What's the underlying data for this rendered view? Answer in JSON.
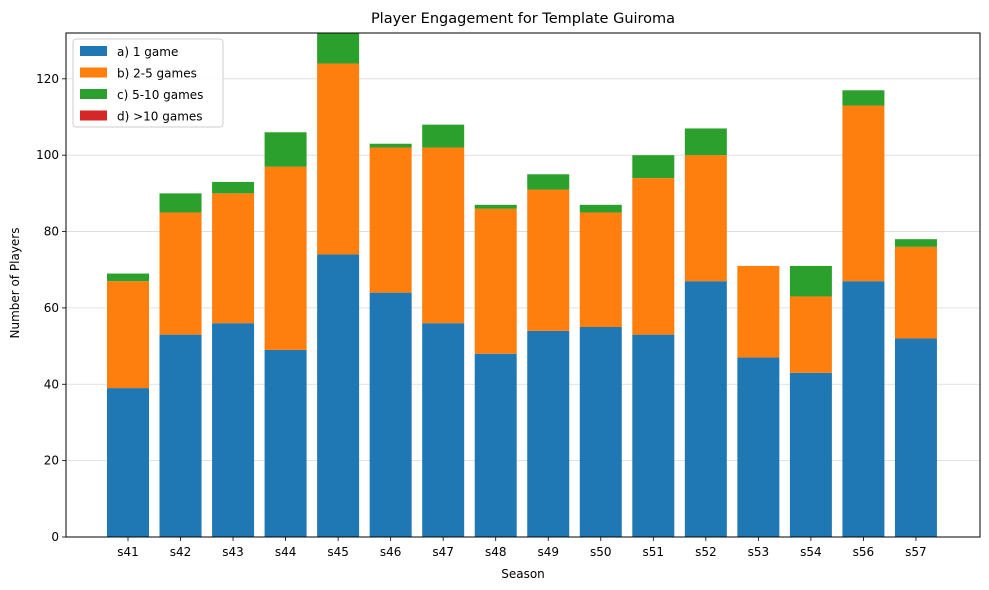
{
  "chart_data": {
    "type": "bar",
    "stacked": true,
    "title": "Player Engagement for Template Guiroma",
    "xlabel": "Season",
    "ylabel": "Number of Players",
    "ylim": [
      0,
      132
    ],
    "yticks": [
      0,
      20,
      40,
      60,
      80,
      100,
      120
    ],
    "grid": "horizontal",
    "legend_position": "top-left",
    "categories": [
      "s41",
      "s42",
      "s43",
      "s44",
      "s45",
      "s46",
      "s47",
      "s48",
      "s49",
      "s50",
      "s51",
      "s52",
      "s53",
      "s54",
      "s56",
      "s57"
    ],
    "series": [
      {
        "name": "a) 1 game",
        "color": "#1f77b4",
        "values": [
          39,
          53,
          56,
          49,
          74,
          64,
          56,
          48,
          54,
          55,
          53,
          67,
          47,
          43,
          67,
          52
        ]
      },
      {
        "name": "b) 2-5 games",
        "color": "#ff7f0e",
        "values": [
          28,
          32,
          34,
          48,
          50,
          38,
          46,
          38,
          37,
          30,
          41,
          33,
          24,
          20,
          46,
          24
        ]
      },
      {
        "name": "c) 5-10 games",
        "color": "#2ca02c",
        "values": [
          2,
          5,
          3,
          9,
          8,
          1,
          6,
          1,
          4,
          2,
          6,
          7,
          0,
          8,
          4,
          2
        ]
      },
      {
        "name": "d) >10 games",
        "color": "#d62728",
        "values": [
          0,
          0,
          0,
          0,
          0,
          0,
          0,
          0,
          0,
          0,
          0,
          0,
          0,
          0,
          0,
          0
        ]
      }
    ]
  }
}
